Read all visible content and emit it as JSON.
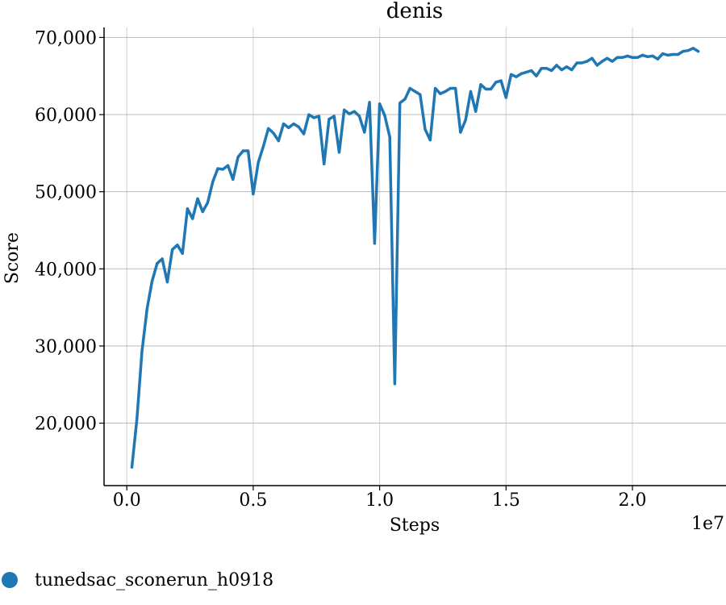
{
  "chart_data": {
    "type": "line",
    "title": "denis",
    "xlabel": "Steps",
    "ylabel": "Score",
    "x_offset_label": "1e7",
    "xlim": [
      -0.09,
      2.37
    ],
    "ylim": [
      11900,
      71300
    ],
    "x_ticks": [
      0.0,
      0.5,
      1.0,
      1.5,
      2.0
    ],
    "x_tick_labels": [
      "0.0",
      "0.5",
      "1.0",
      "1.5",
      "2.0"
    ],
    "y_ticks": [
      20000,
      30000,
      40000,
      50000,
      60000,
      70000
    ],
    "y_tick_labels": [
      "20,000",
      "30,000",
      "40,000",
      "50,000",
      "60,000",
      "70,000"
    ],
    "grid": true,
    "legend_position": "bottom-left",
    "series": [
      {
        "name": "tunedsac_sconerun_h0918",
        "color": "#1f77b4",
        "x": [
          0.02,
          0.04,
          0.06,
          0.08,
          0.1,
          0.12,
          0.14,
          0.16,
          0.18,
          0.2,
          0.22,
          0.24,
          0.26,
          0.28,
          0.3,
          0.32,
          0.34,
          0.36,
          0.38,
          0.4,
          0.42,
          0.44,
          0.46,
          0.48,
          0.5,
          0.52,
          0.54,
          0.56,
          0.58,
          0.6,
          0.62,
          0.64,
          0.66,
          0.68,
          0.7,
          0.72,
          0.74,
          0.76,
          0.78,
          0.8,
          0.82,
          0.84,
          0.86,
          0.88,
          0.9,
          0.92,
          0.94,
          0.96,
          0.98,
          1.0,
          1.02,
          1.04,
          1.06,
          1.08,
          1.1,
          1.12,
          1.14,
          1.16,
          1.18,
          1.2,
          1.22,
          1.24,
          1.26,
          1.28,
          1.3,
          1.32,
          1.34,
          1.36,
          1.38,
          1.4,
          1.42,
          1.44,
          1.46,
          1.48,
          1.5,
          1.52,
          1.54,
          1.56,
          1.58,
          1.6,
          1.62,
          1.64,
          1.66,
          1.68,
          1.7,
          1.72,
          1.74,
          1.76,
          1.78,
          1.8,
          1.82,
          1.84,
          1.86,
          1.88,
          1.9,
          1.92,
          1.94,
          1.96,
          1.98,
          2.0,
          2.02,
          2.04,
          2.06,
          2.08,
          2.1,
          2.12,
          2.14,
          2.16,
          2.18,
          2.2,
          2.22,
          2.24,
          2.26
        ],
        "y": [
          14300,
          20500,
          29300,
          34800,
          38400,
          40700,
          41300,
          38300,
          42500,
          43100,
          42000,
          47800,
          46500,
          49100,
          47400,
          48600,
          51300,
          53000,
          52900,
          53400,
          51600,
          54500,
          55300,
          55300,
          49700,
          53800,
          55900,
          58200,
          57600,
          56600,
          58800,
          58300,
          58800,
          58400,
          57500,
          60000,
          59600,
          59800,
          53600,
          59400,
          59800,
          55100,
          60600,
          60100,
          60400,
          59800,
          57700,
          61600,
          43300,
          61400,
          59900,
          57100,
          25100,
          61500,
          62000,
          63400,
          63000,
          62600,
          58100,
          56700,
          63400,
          62700,
          63000,
          63400,
          63400,
          57700,
          59300,
          63000,
          60400,
          63900,
          63300,
          63300,
          64200,
          64400,
          62200,
          65200,
          64900,
          65300,
          65500,
          65700,
          65000,
          66000,
          66000,
          65700,
          66400,
          65800,
          66200,
          65800,
          66700,
          66700,
          66900,
          67300,
          66400,
          66900,
          67300,
          66900,
          67400,
          67400,
          67600,
          67400,
          67400,
          67700,
          67500,
          67600,
          67200,
          67900,
          67700,
          67800,
          67800,
          68200,
          68300,
          68600,
          68200
        ]
      }
    ]
  }
}
